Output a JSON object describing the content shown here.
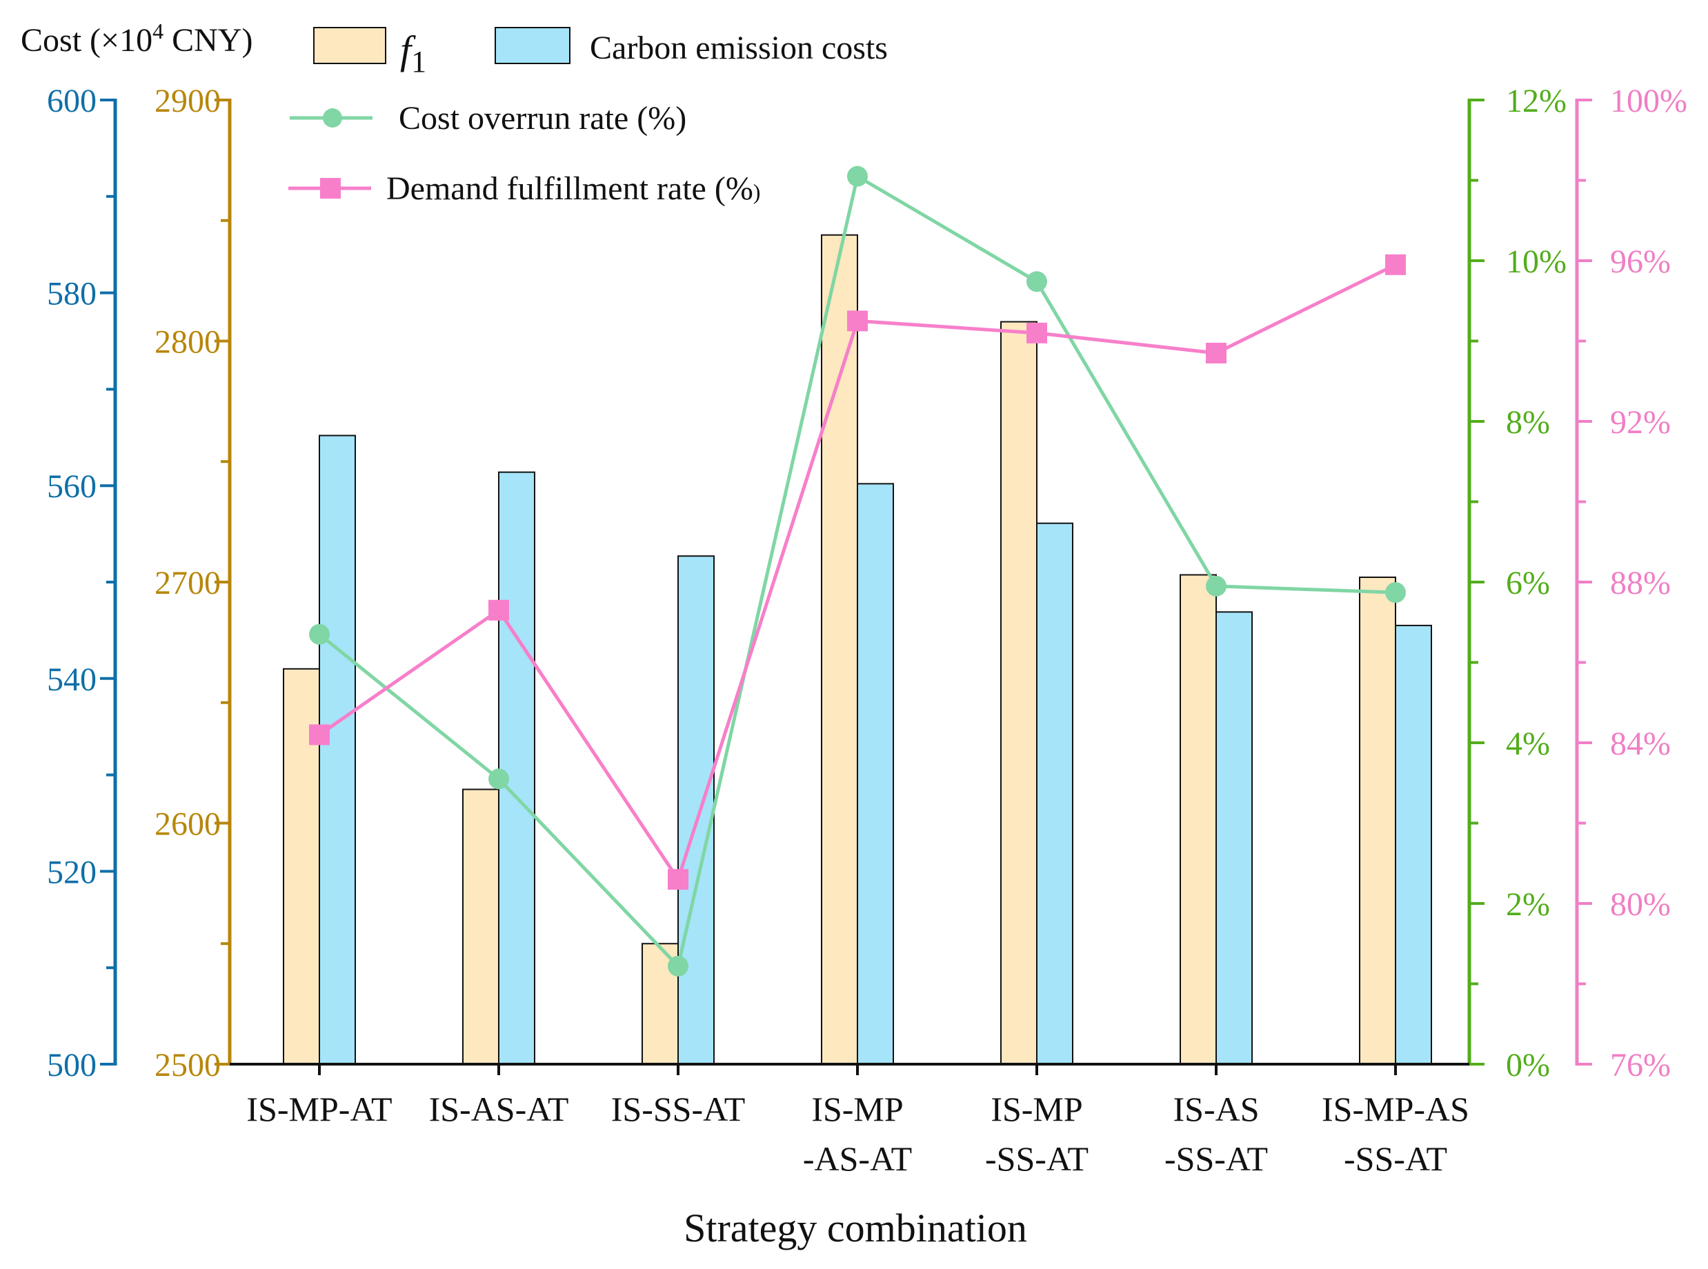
{
  "chart_data": {
    "type": "bar",
    "title": "",
    "xlabel": "Strategy combination",
    "cost_label_prefix": "Cost (×10",
    "cost_label_exp": "4",
    "cost_label_suffix": " CNY)",
    "categories": [
      [
        "IS-MP-AT"
      ],
      [
        "IS-AS-AT"
      ],
      [
        "IS-SS-AT"
      ],
      [
        "IS-MP",
        "-AS-AT"
      ],
      [
        "IS-MP",
        "-SS-AT"
      ],
      [
        "IS-AS",
        "-SS-AT"
      ],
      [
        "IS-MP-AS",
        "-SS-AT"
      ]
    ],
    "series": [
      {
        "name": "f1",
        "name_main": "f",
        "name_sub": "1",
        "type": "bar",
        "axis": "f1",
        "color": "#fde8c0",
        "values": [
          2664,
          2614,
          2550,
          2844,
          2808,
          2703,
          2702
        ]
      },
      {
        "name": "Carbon emission costs",
        "type": "bar",
        "axis": "carbon",
        "color": "#a6e4fa",
        "values": [
          565.2,
          561.4,
          552.7,
          560.2,
          556.1,
          546.9,
          545.5
        ]
      },
      {
        "name": "Cost overrun rate (%)",
        "type": "line",
        "axis": "overrun",
        "color": "#80d6a4",
        "values": [
          5.35,
          3.55,
          1.22,
          11.05,
          9.74,
          5.95,
          5.87
        ]
      },
      {
        "name": "Demand fulfillment rate (%)",
        "name_main": "Demand fulfillment rate (%",
        "name_tail": ")",
        "type": "line",
        "axis": "demand",
        "color": "#f77fca",
        "values": [
          84.2,
          87.3,
          80.6,
          94.5,
          94.2,
          93.7,
          95.9
        ]
      }
    ],
    "axes": {
      "carbon": {
        "color": "#0f6fa8",
        "range": [
          500,
          600
        ],
        "major_ticks": [
          500,
          520,
          540,
          560,
          580,
          600
        ],
        "tick_labels": [
          "500",
          "520",
          "540",
          "560",
          "580",
          "600"
        ]
      },
      "f1": {
        "color": "#b8860b",
        "range": [
          2500,
          2900
        ],
        "major_ticks": [
          2500,
          2600,
          2700,
          2800,
          2900
        ],
        "tick_labels": [
          "2500",
          "2600",
          "2700",
          "2800",
          "2900"
        ]
      },
      "overrun": {
        "color": "#52ad1a",
        "range": [
          0,
          12
        ],
        "major_ticks": [
          0,
          2,
          4,
          6,
          8,
          10,
          12
        ],
        "tick_labels": [
          "0%",
          "2%",
          "4%",
          "6%",
          "8%",
          "10%",
          "12%"
        ]
      },
      "demand": {
        "color": "#f07ec5",
        "range": [
          76,
          100
        ],
        "major_ticks": [
          76,
          80,
          84,
          88,
          92,
          96,
          100
        ],
        "tick_labels": [
          "76%",
          "80%",
          "84%",
          "88%",
          "92%",
          "96%",
          "100%"
        ]
      }
    },
    "grid": false,
    "legend_position": "top"
  }
}
